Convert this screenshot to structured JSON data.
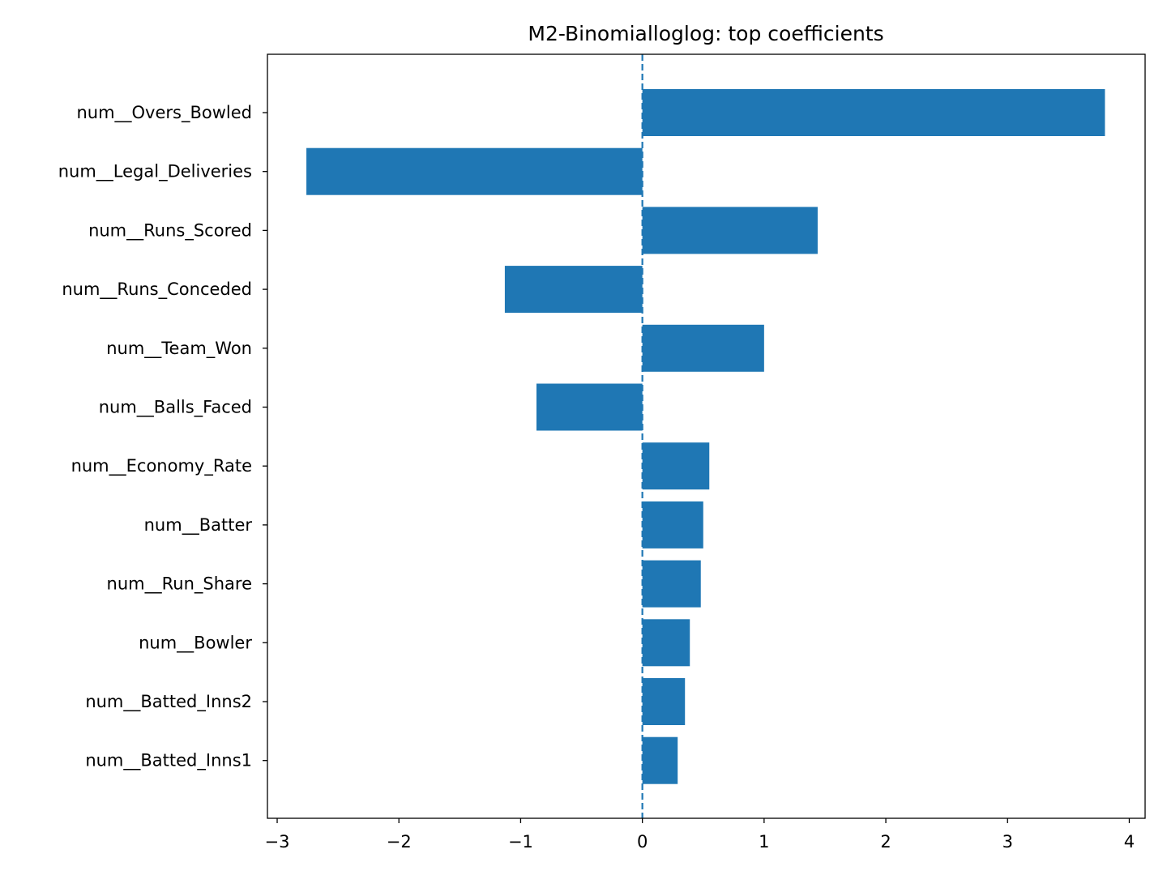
{
  "chart_data": {
    "type": "bar",
    "orientation": "horizontal",
    "title": "M2-Binomialloglog: top coefficients",
    "xlabel": "",
    "ylabel": "",
    "categories": [
      "num__Overs_Bowled",
      "num__Legal_Deliveries",
      "num__Runs_Scored",
      "num__Runs_Conceded",
      "num__Team_Won",
      "num__Balls_Faced",
      "num__Economy_Rate",
      "num__Batter",
      "num__Run_Share",
      "num__Bowler",
      "num__Batted_Inns2",
      "num__Batted_Inns1"
    ],
    "values": [
      3.8,
      -2.76,
      1.44,
      -1.13,
      1.0,
      -0.87,
      0.55,
      0.5,
      0.48,
      0.39,
      0.35,
      0.29
    ],
    "xlim": [
      -3.08,
      4.13
    ],
    "xticks": [
      -3,
      -2,
      -1,
      0,
      1,
      2,
      3,
      4
    ],
    "xtick_labels": [
      "−3",
      "−2",
      "−1",
      "0",
      "1",
      "2",
      "3",
      "4"
    ],
    "reference_line": {
      "x": 0,
      "style": "dashed"
    },
    "grid": false,
    "legend": "none",
    "bar_color": "#1f77b4"
  }
}
